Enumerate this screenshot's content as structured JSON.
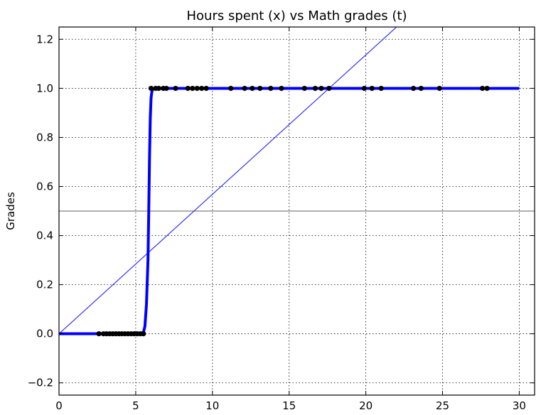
{
  "chart_data": {
    "type": "line",
    "title": "Hours spent (x) vs Math grades (t)",
    "xlabel": "",
    "ylabel": "Grades",
    "xlim": [
      0,
      31
    ],
    "ylim": [
      -0.25,
      1.25
    ],
    "xticks": [
      0,
      5,
      10,
      15,
      20,
      25,
      30
    ],
    "yticks": [
      -0.2,
      0.0,
      0.2,
      0.4,
      0.6,
      0.8,
      1.0,
      1.2
    ],
    "xtick_labels": [
      "0",
      "5",
      "10",
      "15",
      "20",
      "25",
      "30"
    ],
    "ytick_labels": [
      "−0.2",
      "0.0",
      "0.2",
      "0.4",
      "0.6",
      "0.8",
      "1.0",
      "1.2"
    ],
    "grid": true,
    "threshold_line": {
      "y": 0.5,
      "color": "#808080"
    },
    "linear_fit": {
      "color": "#3333ff",
      "points": [
        [
          0,
          0
        ],
        [
          22,
          1.25
        ]
      ]
    },
    "logistic_curve": {
      "color": "#0000ff",
      "x": [
        0,
        5.0,
        5.5,
        5.6,
        5.7,
        5.8,
        5.85,
        5.9,
        5.95,
        6.0,
        6.05,
        6.1,
        6.2,
        6.5,
        30
      ],
      "y": [
        0.0,
        0.0,
        0.005,
        0.03,
        0.12,
        0.3,
        0.5,
        0.72,
        0.88,
        0.96,
        0.985,
        0.995,
        1.0,
        1.0,
        1.0
      ]
    },
    "series": [
      {
        "color": "#000000",
        "x": [
          2.6,
          2.9,
          3.1,
          3.3,
          3.5,
          3.7,
          3.9,
          4.1,
          4.3,
          4.5,
          4.7,
          4.9,
          5.1,
          5.3,
          5.5,
          6.0,
          6.3,
          6.5,
          6.8,
          7.0,
          7.6,
          8.4,
          8.7,
          9.0,
          9.3,
          9.6,
          11.2,
          12.1,
          12.6,
          13.1,
          13.8,
          14.5,
          16.0,
          16.7,
          17.1,
          17.6,
          19.9,
          20.4,
          21.0,
          23.1,
          23.6,
          24.8,
          27.6,
          27.9
        ],
        "y": [
          0,
          0,
          0,
          0,
          0,
          0,
          0,
          0,
          0,
          0,
          0,
          0,
          0,
          0,
          0,
          1,
          1,
          1,
          1,
          1,
          1,
          1,
          1,
          1,
          1,
          1,
          1,
          1,
          1,
          1,
          1,
          1,
          1,
          1,
          1,
          1,
          1,
          1,
          1,
          1,
          1,
          1,
          1,
          1
        ]
      }
    ]
  }
}
